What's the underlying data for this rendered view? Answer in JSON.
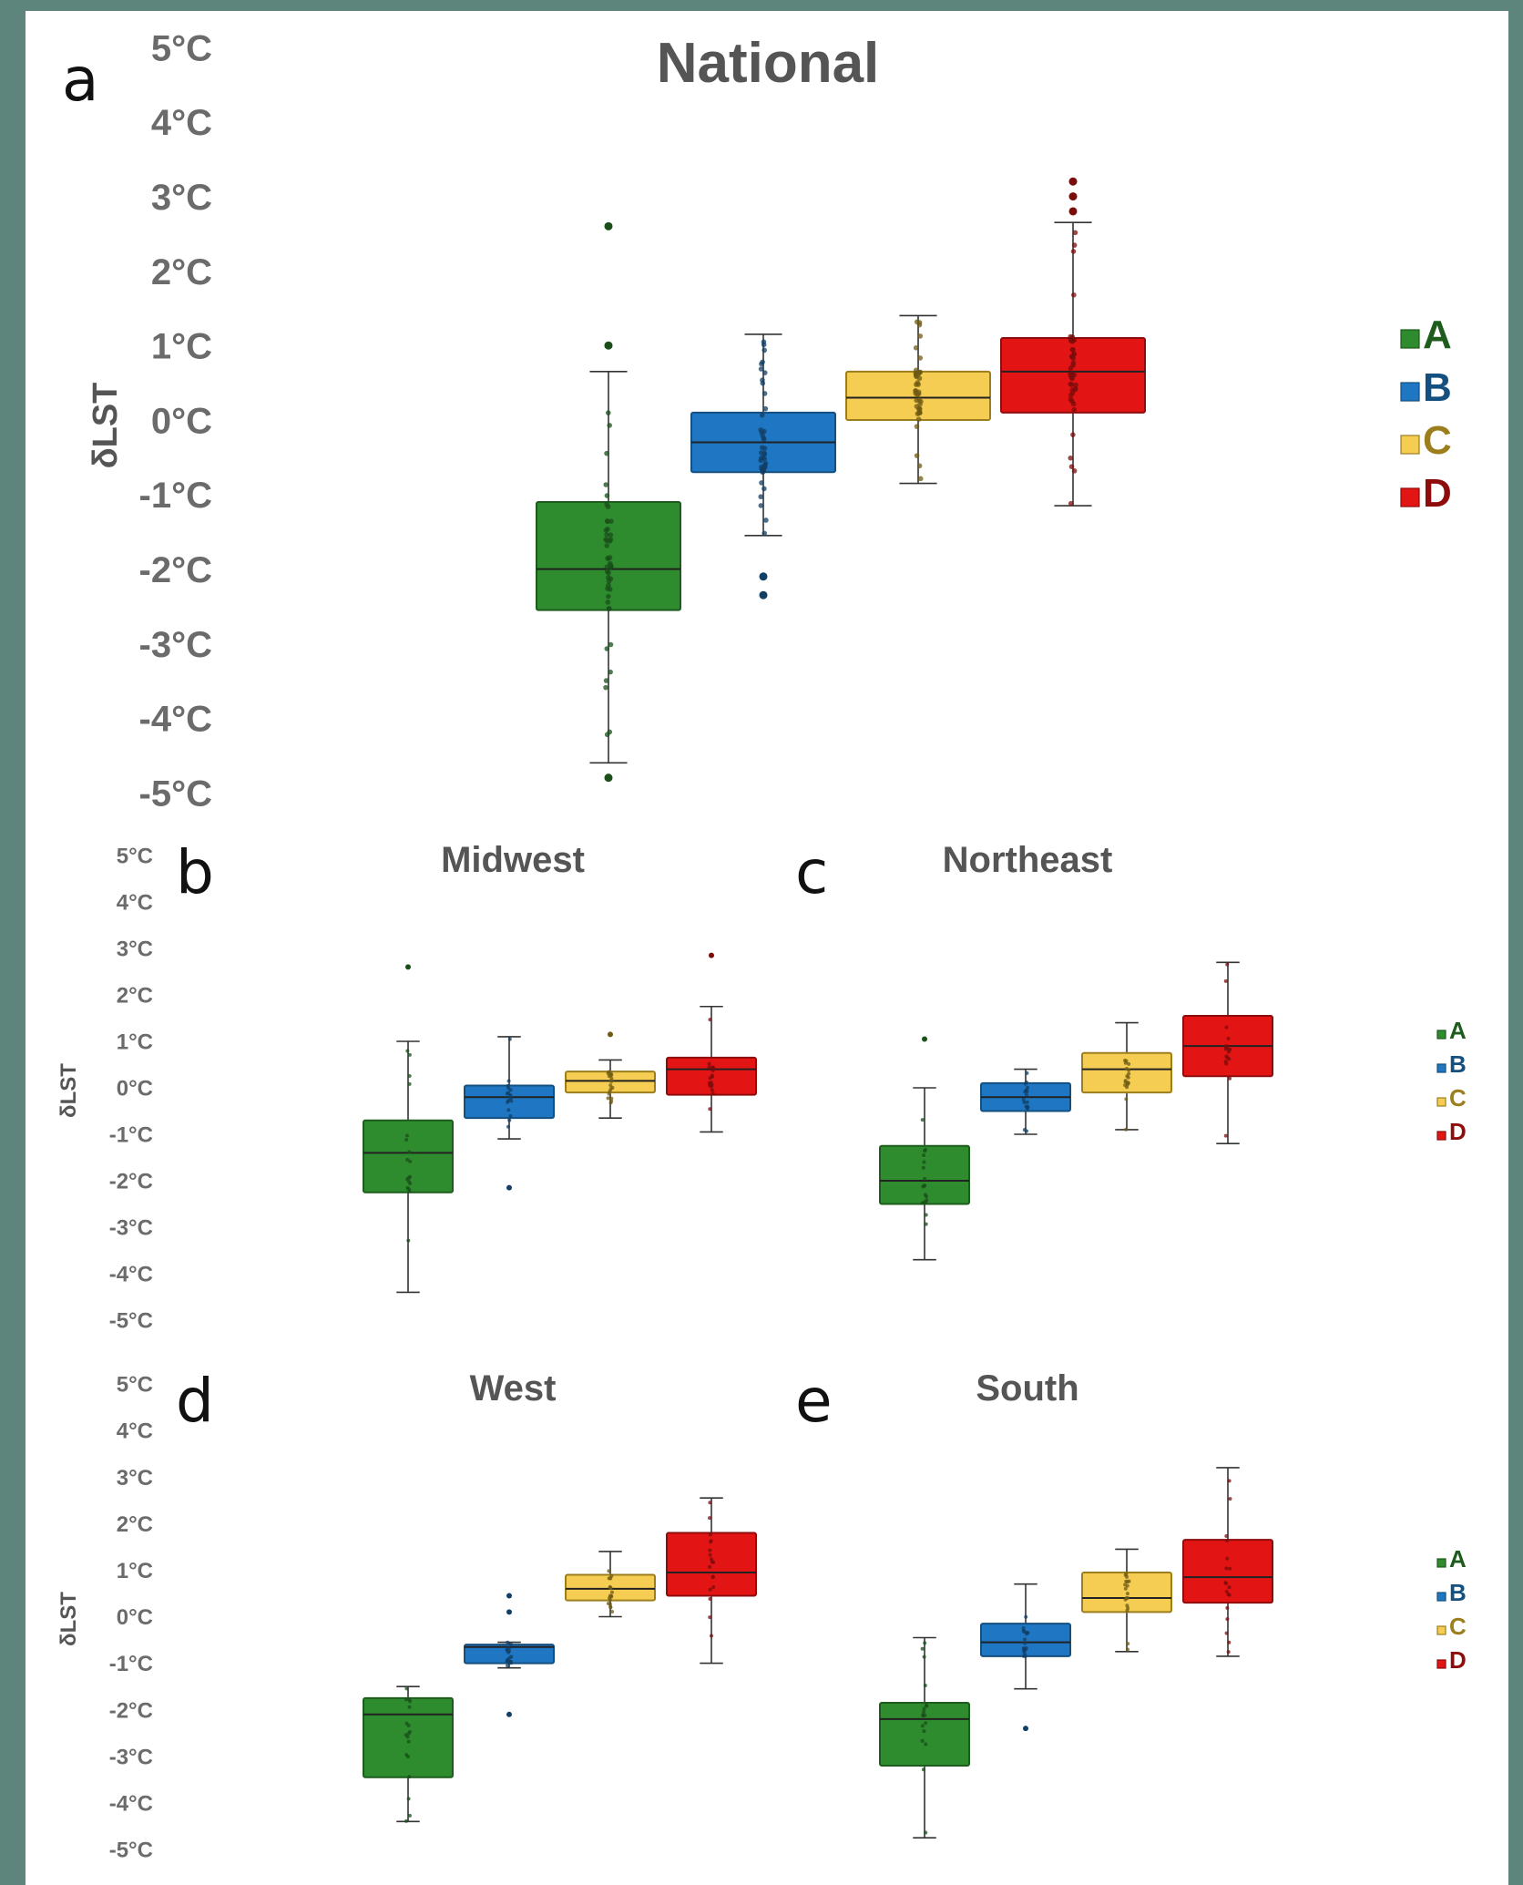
{
  "colors": {
    "A": "#2e8b2e",
    "B": "#1f77c4",
    "C": "#f5cd52",
    "D": "#e31414",
    "background": "#5e857c"
  },
  "chart_data": [
    {
      "panel": "a",
      "type": "box",
      "title": "National",
      "ylabel": "δLST",
      "yticks": [
        "5°C",
        "4°C",
        "3°C",
        "2°C",
        "1°C",
        "0°C",
        "-1°C",
        "-2°C",
        "-3°C",
        "-4°C",
        "-5°C"
      ],
      "ylim": [
        -5,
        5
      ],
      "legend": [
        "A",
        "B",
        "C",
        "D"
      ],
      "series": [
        {
          "name": "A",
          "min": -4.6,
          "q1": -2.55,
          "median": -2.0,
          "q3": -1.1,
          "max": 0.65,
          "outliers": [
            2.6,
            1.0,
            -4.8
          ]
        },
        {
          "name": "B",
          "min": -1.55,
          "q1": -0.7,
          "median": -0.3,
          "q3": 0.1,
          "max": 1.15,
          "outliers": [
            -2.1,
            -2.35
          ]
        },
        {
          "name": "C",
          "min": -0.85,
          "q1": 0.0,
          "median": 0.3,
          "q3": 0.65,
          "max": 1.4,
          "outliers": []
        },
        {
          "name": "D",
          "min": -1.15,
          "q1": 0.1,
          "median": 0.65,
          "q3": 1.1,
          "max": 2.65,
          "outliers": [
            2.8,
            3.0,
            3.2
          ]
        }
      ]
    },
    {
      "panel": "b",
      "type": "box",
      "title": "Midwest",
      "ylabel": "δLST",
      "yticks": [
        "5°C",
        "4°C",
        "3°C",
        "2°C",
        "1°C",
        "0°C",
        "-1°C",
        "-2°C",
        "-3°C",
        "-4°C",
        "-5°C"
      ],
      "ylim": [
        -5,
        5
      ],
      "legend": [],
      "series": [
        {
          "name": "A",
          "min": -4.4,
          "q1": -2.25,
          "median": -1.4,
          "q3": -0.7,
          "max": 1.0,
          "outliers": [
            2.6
          ]
        },
        {
          "name": "B",
          "min": -1.1,
          "q1": -0.65,
          "median": -0.2,
          "q3": 0.05,
          "max": 1.1,
          "outliers": [
            -2.15
          ]
        },
        {
          "name": "C",
          "min": -0.65,
          "q1": -0.1,
          "median": 0.15,
          "q3": 0.35,
          "max": 0.6,
          "outliers": [
            1.15
          ]
        },
        {
          "name": "D",
          "min": -0.95,
          "q1": -0.15,
          "median": 0.4,
          "q3": 0.65,
          "max": 1.75,
          "outliers": [
            2.85
          ]
        }
      ]
    },
    {
      "panel": "c",
      "type": "box",
      "title": "Northeast",
      "ylabel": "",
      "yticks": [],
      "ylim": [
        -5,
        5
      ],
      "legend": [
        "A",
        "B",
        "C",
        "D"
      ],
      "series": [
        {
          "name": "A",
          "min": -3.7,
          "q1": -2.5,
          "median": -2.0,
          "q3": -1.25,
          "max": 0.0,
          "outliers": [
            1.05
          ]
        },
        {
          "name": "B",
          "min": -1.0,
          "q1": -0.5,
          "median": -0.2,
          "q3": 0.1,
          "max": 0.4,
          "outliers": []
        },
        {
          "name": "C",
          "min": -0.9,
          "q1": -0.1,
          "median": 0.4,
          "q3": 0.75,
          "max": 1.4,
          "outliers": []
        },
        {
          "name": "D",
          "min": -1.2,
          "q1": 0.25,
          "median": 0.9,
          "q3": 1.55,
          "max": 2.7,
          "outliers": []
        }
      ]
    },
    {
      "panel": "d",
      "type": "box",
      "title": "West",
      "ylabel": "δLST",
      "yticks": [
        "5°C",
        "4°C",
        "3°C",
        "2°C",
        "1°C",
        "0°C",
        "-1°C",
        "-2°C",
        "-3°C",
        "-4°C",
        "-5°C"
      ],
      "ylim": [
        -5,
        5
      ],
      "legend": [],
      "series": [
        {
          "name": "A",
          "min": -4.4,
          "q1": -3.45,
          "median": -2.1,
          "q3": -1.75,
          "max": -1.5,
          "outliers": []
        },
        {
          "name": "B",
          "min": -1.1,
          "q1": -1.0,
          "median": -0.65,
          "q3": -0.6,
          "max": -0.55,
          "outliers": [
            0.45,
            0.1,
            -2.1
          ]
        },
        {
          "name": "C",
          "min": 0.0,
          "q1": 0.35,
          "median": 0.6,
          "q3": 0.9,
          "max": 1.4,
          "outliers": []
        },
        {
          "name": "D",
          "min": -1.0,
          "q1": 0.45,
          "median": 0.95,
          "q3": 1.8,
          "max": 2.55,
          "outliers": []
        }
      ]
    },
    {
      "panel": "e",
      "type": "box",
      "title": "South",
      "ylabel": "",
      "yticks": [],
      "ylim": [
        -5,
        5
      ],
      "legend": [
        "A",
        "B",
        "C",
        "D"
      ],
      "series": [
        {
          "name": "A",
          "min": -4.75,
          "q1": -3.2,
          "median": -2.2,
          "q3": -1.85,
          "max": -0.45,
          "outliers": []
        },
        {
          "name": "B",
          "min": -1.55,
          "q1": -0.85,
          "median": -0.55,
          "q3": -0.15,
          "max": 0.7,
          "outliers": [
            -2.4
          ]
        },
        {
          "name": "C",
          "min": -0.75,
          "q1": 0.1,
          "median": 0.4,
          "q3": 0.95,
          "max": 1.45,
          "outliers": []
        },
        {
          "name": "D",
          "min": -0.85,
          "q1": 0.3,
          "median": 0.85,
          "q3": 1.65,
          "max": 3.2,
          "outliers": []
        }
      ]
    }
  ]
}
